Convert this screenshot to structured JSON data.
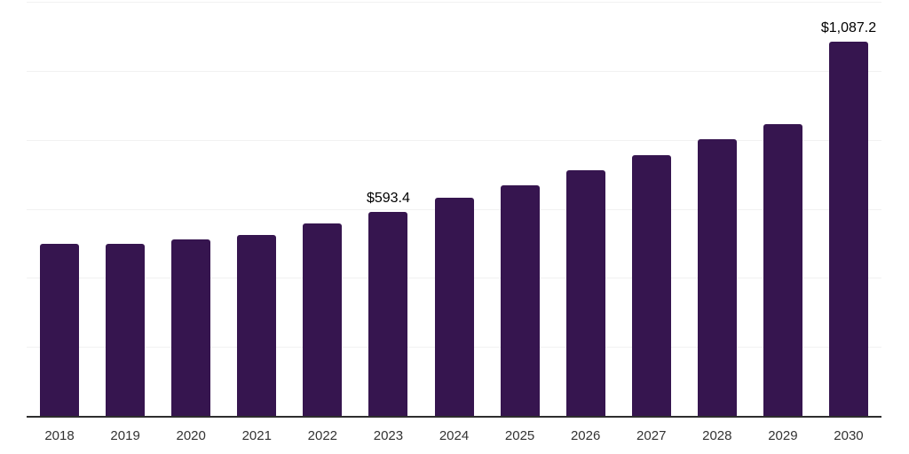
{
  "page": {
    "background_color": "#ffffff"
  },
  "chart_data": {
    "type": "bar",
    "title": "",
    "xlabel": "",
    "ylabel": "",
    "categories": [
      "2018",
      "2019",
      "2020",
      "2021",
      "2022",
      "2023",
      "2024",
      "2025",
      "2026",
      "2027",
      "2028",
      "2029",
      "2030"
    ],
    "values": [
      502,
      501,
      513,
      526,
      560,
      593.4,
      635,
      671,
      714,
      758,
      804,
      849,
      1087.2
    ],
    "data_labels": [
      "",
      "",
      "",
      "",
      "",
      "$593.4",
      "",
      "",
      "",
      "",
      "",
      "",
      "$1,087.2"
    ],
    "ylim": [
      0,
      1200
    ],
    "gridline_interval": 200,
    "grid": "horizontal",
    "legend": "none",
    "y_axis_ticks_visible": false,
    "colors": {
      "bar": "#36154F",
      "gridline": "#f1f1f1",
      "axis_line": "#2e2e2e",
      "tick_label": "#333333",
      "data_label": "#000000"
    }
  }
}
